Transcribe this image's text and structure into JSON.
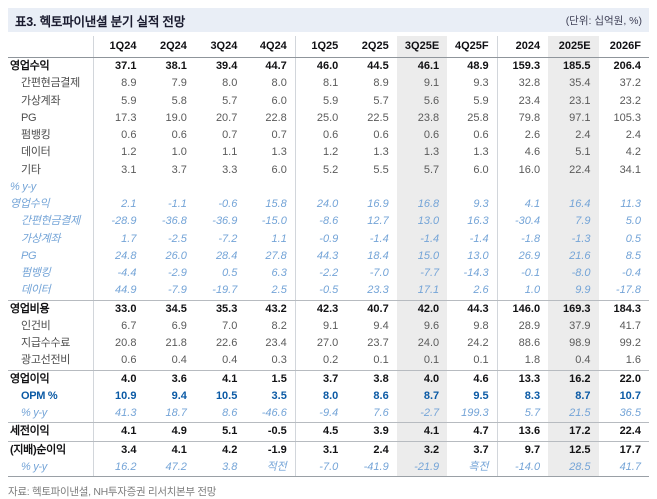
{
  "header": {
    "title": "표3. 헥토파이낸셜 분기 실적 전망",
    "unit": "(단위: 십억원, %)"
  },
  "footer": {
    "source": "자료: 헥토파이낸셜, NH투자증권 리서치본부 전망"
  },
  "colors": {
    "title_bar_bg": "#e9eef6",
    "highlight_column_bg": "#ececec",
    "yoy_blue": "#74a4d7",
    "opm_blue": "#0b5aa5",
    "normal_number": "#5a5a5a",
    "bold_number": "#121214"
  },
  "chart_data": {
    "type": "table",
    "title": "표3. 헥토파이낸셜 분기 실적 전망",
    "columns": [
      "1Q24",
      "2Q24",
      "3Q24",
      "4Q24",
      "1Q25",
      "2Q25",
      "3Q25E",
      "4Q25F",
      "2024",
      "2025E",
      "2026F"
    ],
    "layout": {
      "highlight_columns": [
        6,
        9
      ],
      "separator_after_columns": [
        3,
        7
      ]
    },
    "rows": [
      {
        "label": "영업수익",
        "style": "bold",
        "indent": false,
        "border_top": false,
        "values": [
          "37.1",
          "38.1",
          "39.4",
          "44.7",
          "46.0",
          "44.5",
          "46.1",
          "48.9",
          "159.3",
          "185.5",
          "206.4"
        ]
      },
      {
        "label": "간편현금결제",
        "style": "normal",
        "indent": true,
        "border_top": false,
        "values": [
          "8.9",
          "7.9",
          "8.0",
          "8.0",
          "8.1",
          "8.9",
          "9.1",
          "9.3",
          "32.8",
          "35.4",
          "37.2"
        ]
      },
      {
        "label": "가상계좌",
        "style": "normal",
        "indent": true,
        "border_top": false,
        "values": [
          "5.9",
          "5.8",
          "5.7",
          "6.0",
          "5.9",
          "5.7",
          "5.6",
          "5.9",
          "23.4",
          "23.1",
          "23.2"
        ]
      },
      {
        "label": "PG",
        "style": "normal",
        "indent": true,
        "border_top": false,
        "values": [
          "17.3",
          "19.0",
          "20.7",
          "22.8",
          "25.0",
          "22.5",
          "23.8",
          "25.8",
          "79.8",
          "97.1",
          "105.3"
        ]
      },
      {
        "label": "펌뱅킹",
        "style": "normal",
        "indent": true,
        "border_top": false,
        "values": [
          "0.6",
          "0.6",
          "0.7",
          "0.7",
          "0.6",
          "0.6",
          "0.6",
          "0.6",
          "2.6",
          "2.4",
          "2.4"
        ]
      },
      {
        "label": "데이터",
        "style": "normal",
        "indent": true,
        "border_top": false,
        "values": [
          "1.2",
          "1.0",
          "1.1",
          "1.3",
          "1.2",
          "1.3",
          "1.3",
          "1.3",
          "4.6",
          "5.1",
          "4.2"
        ]
      },
      {
        "label": "기타",
        "style": "normal",
        "indent": true,
        "border_top": false,
        "values": [
          "3.1",
          "3.7",
          "3.3",
          "6.0",
          "5.2",
          "5.5",
          "5.7",
          "6.0",
          "16.0",
          "22.4",
          "34.1"
        ]
      },
      {
        "label": "% y-y",
        "style": "yoy",
        "indent": false,
        "border_top": false,
        "values": [
          "",
          "",
          "",
          "",
          "",
          "",
          "",
          "",
          "",
          "",
          ""
        ]
      },
      {
        "label": "영업수익",
        "style": "yoy",
        "indent": false,
        "border_top": false,
        "values": [
          "2.1",
          "-1.1",
          "-0.6",
          "15.8",
          "24.0",
          "16.9",
          "16.8",
          "9.3",
          "4.1",
          "16.4",
          "11.3"
        ]
      },
      {
        "label": "간편현금결제",
        "style": "yoy",
        "indent": true,
        "border_top": false,
        "values": [
          "-28.9",
          "-36.8",
          "-36.9",
          "-15.0",
          "-8.6",
          "12.7",
          "13.0",
          "16.3",
          "-30.4",
          "7.9",
          "5.0"
        ]
      },
      {
        "label": "가상계좌",
        "style": "yoy",
        "indent": true,
        "border_top": false,
        "values": [
          "1.7",
          "-2.5",
          "-7.2",
          "1.1",
          "-0.9",
          "-1.4",
          "-1.4",
          "-1.4",
          "-1.8",
          "-1.3",
          "0.5"
        ]
      },
      {
        "label": "PG",
        "style": "yoy",
        "indent": true,
        "border_top": false,
        "values": [
          "24.8",
          "26.0",
          "28.4",
          "27.8",
          "44.3",
          "18.4",
          "15.0",
          "13.0",
          "26.9",
          "21.6",
          "8.5"
        ]
      },
      {
        "label": "펌뱅킹",
        "style": "yoy",
        "indent": true,
        "border_top": false,
        "values": [
          "-4.4",
          "-2.9",
          "0.5",
          "6.3",
          "-2.2",
          "-7.0",
          "-7.7",
          "-14.3",
          "-0.1",
          "-8.0",
          "-0.4"
        ]
      },
      {
        "label": "데이터",
        "style": "yoy",
        "indent": true,
        "border_top": false,
        "values": [
          "44.9",
          "-7.9",
          "-19.7",
          "2.5",
          "-0.5",
          "23.3",
          "17.1",
          "2.6",
          "1.0",
          "9.9",
          "-17.8"
        ]
      },
      {
        "label": "영업비용",
        "style": "bold",
        "indent": false,
        "border_top": true,
        "values": [
          "33.0",
          "34.5",
          "35.3",
          "43.2",
          "42.3",
          "40.7",
          "42.0",
          "44.3",
          "146.0",
          "169.3",
          "184.3"
        ]
      },
      {
        "label": "인건비",
        "style": "normal",
        "indent": true,
        "border_top": false,
        "values": [
          "6.7",
          "6.9",
          "7.0",
          "8.2",
          "9.1",
          "9.4",
          "9.6",
          "9.8",
          "28.9",
          "37.9",
          "41.7"
        ]
      },
      {
        "label": "지급수수료",
        "style": "normal",
        "indent": true,
        "border_top": false,
        "values": [
          "20.8",
          "21.8",
          "22.6",
          "23.4",
          "27.0",
          "23.7",
          "24.0",
          "24.2",
          "88.6",
          "98.9",
          "99.2"
        ]
      },
      {
        "label": "광고선전비",
        "style": "normal",
        "indent": true,
        "border_top": false,
        "values": [
          "0.6",
          "0.4",
          "0.4",
          "0.3",
          "0.2",
          "0.1",
          "0.1",
          "0.1",
          "1.8",
          "0.4",
          "1.6"
        ]
      },
      {
        "label": "영업이익",
        "style": "bold",
        "indent": false,
        "border_top": true,
        "values": [
          "4.0",
          "3.6",
          "4.1",
          "1.5",
          "3.7",
          "3.8",
          "4.0",
          "4.6",
          "13.3",
          "16.2",
          "22.0"
        ]
      },
      {
        "label": "OPM %",
        "style": "boldblue",
        "indent": true,
        "border_top": false,
        "values": [
          "10.9",
          "9.4",
          "10.5",
          "3.5",
          "8.0",
          "8.6",
          "8.7",
          "9.5",
          "8.3",
          "8.7",
          "10.7"
        ]
      },
      {
        "label": "% y-y",
        "style": "yoy",
        "indent": true,
        "border_top": false,
        "values": [
          "41.3",
          "18.7",
          "8.6",
          "-46.6",
          "-9.4",
          "7.6",
          "-2.7",
          "199.3",
          "5.7",
          "21.5",
          "36.5"
        ]
      },
      {
        "label": "세전이익",
        "style": "bold",
        "indent": false,
        "border_top": true,
        "values": [
          "4.1",
          "4.9",
          "5.1",
          "-0.5",
          "4.5",
          "3.9",
          "4.1",
          "4.7",
          "13.6",
          "17.2",
          "22.4"
        ]
      },
      {
        "label": "(지배)순이익",
        "style": "bold",
        "indent": false,
        "border_top": true,
        "values": [
          "3.4",
          "4.1",
          "4.2",
          "-1.9",
          "3.1",
          "2.4",
          "3.2",
          "3.7",
          "9.7",
          "12.5",
          "17.7"
        ]
      },
      {
        "label": "% y-y",
        "style": "yoy",
        "indent": true,
        "border_top": false,
        "values": [
          "16.2",
          "47.2",
          "3.8",
          "적전",
          "-7.0",
          "-41.9",
          "-21.9",
          "흑전",
          "-14.0",
          "28.5",
          "41.7"
        ]
      }
    ]
  }
}
